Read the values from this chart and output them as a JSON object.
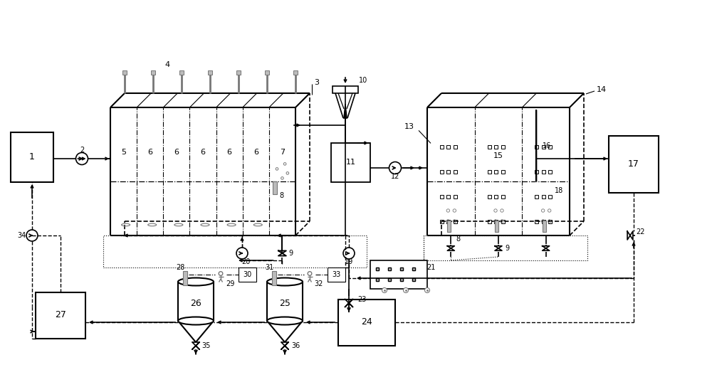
{
  "bg_color": "#ffffff",
  "line_color": "#000000",
  "gray_color": "#777777",
  "light_gray": "#bbbbbb",
  "dark_gray": "#444444",
  "figsize": [
    10.0,
    5.51
  ],
  "dpi": 100
}
